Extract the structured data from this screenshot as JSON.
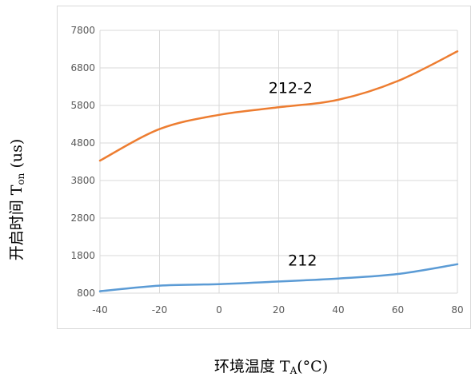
{
  "chart_data": {
    "type": "line",
    "title": "",
    "xlabel": {
      "main": "环境温度 T",
      "sub": "A",
      "suffix": "(°C)"
    },
    "ylabel": {
      "main": "开启时间 T",
      "sub": "on",
      "suffix": " (us)"
    },
    "x": [
      -40,
      -20,
      0,
      20,
      40,
      60,
      80
    ],
    "x_ticks": [
      "-40",
      "-20",
      "0",
      "20",
      "40",
      "60",
      "80"
    ],
    "y_ticks": [
      "800",
      "1800",
      "2800",
      "3800",
      "4800",
      "5800",
      "6800",
      "7800"
    ],
    "xlim": [
      -40,
      80
    ],
    "ylim": [
      800,
      7800
    ],
    "grid": true,
    "legend": "none",
    "series": [
      {
        "name": "212-2",
        "color": "#ED7D31",
        "values": [
          4330,
          5170,
          5550,
          5750,
          5950,
          6450,
          7240
        ]
      },
      {
        "name": "212",
        "color": "#5B9BD5",
        "values": [
          850,
          1000,
          1040,
          1110,
          1190,
          1310,
          1570
        ]
      }
    ],
    "annotations": [
      {
        "text": "212-2",
        "x": 24,
        "y": 6130,
        "series": "212-2"
      },
      {
        "text": "212",
        "x": 28,
        "y": 1530,
        "series": "212"
      }
    ]
  }
}
